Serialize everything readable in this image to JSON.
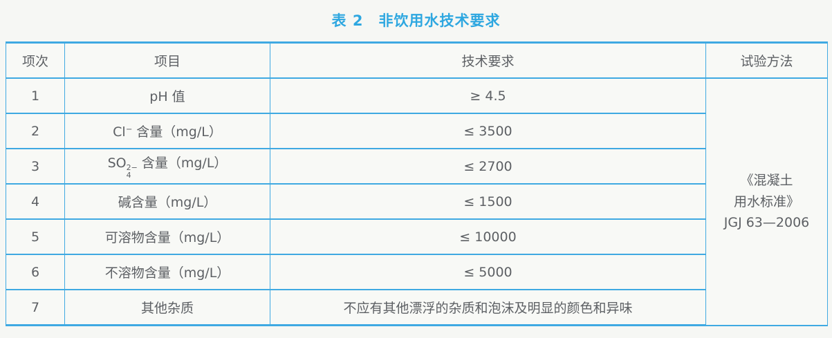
{
  "page": {
    "background_color": "#f6f7f4"
  },
  "title": {
    "text": "表 2　非饮用水技术要求",
    "color": "#2ea7e0"
  },
  "table": {
    "border_color": "#3fa9e2",
    "text_color": "#5d6064",
    "headers": [
      "项次",
      "项目",
      "技术要求",
      "试验方法"
    ],
    "rows": [
      {
        "no": "1",
        "item": "pH 值",
        "requirement": "≥ 4.5"
      },
      {
        "no": "2",
        "item_prefix": "Cl",
        "item_sup": "−",
        "item_suffix": " 含量（mg/L）",
        "requirement": "≤ 3500"
      },
      {
        "no": "3",
        "item_prefix": "SO",
        "item_sup": "2−",
        "item_sub": "4",
        "item_suffix": " 含量（mg/L）",
        "requirement": "≤ 2700"
      },
      {
        "no": "4",
        "item": "碱含量（mg/L）",
        "requirement": "≤ 1500"
      },
      {
        "no": "5",
        "item": "可溶物含量（mg/L）",
        "requirement": "≤ 10000"
      },
      {
        "no": "6",
        "item": "不溶物含量（mg/L）",
        "requirement": "≤ 5000"
      },
      {
        "no": "7",
        "item": "其他杂质",
        "requirement": "不应有其他漂浮的杂质和泡沫及明显的颜色和异味"
      }
    ],
    "test_method": {
      "lines": [
        "《混凝土",
        "用水标准》",
        "JGJ 63—2006"
      ]
    }
  }
}
